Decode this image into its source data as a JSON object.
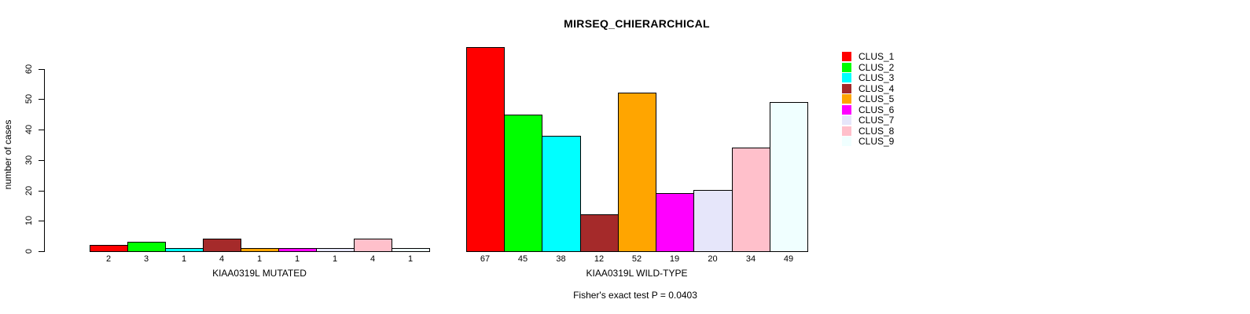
{
  "chart_data": {
    "type": "bar",
    "title": "MIRSEQ_CHIERARCHICAL",
    "ylabel": "number of cases",
    "annotation": "Fisher's exact test P = 0.0403",
    "yticks": [
      0,
      10,
      20,
      30,
      40,
      50,
      60
    ],
    "ylim": [
      0,
      67
    ],
    "grid": false,
    "bar_gap": 0,
    "legend_position": "top-right",
    "categories": [
      "CLUS_1",
      "CLUS_2",
      "CLUS_3",
      "CLUS_4",
      "CLUS_5",
      "CLUS_6",
      "CLUS_7",
      "CLUS_8",
      "CLUS_9"
    ],
    "series_colors": [
      "#FF0000",
      "#00FF00",
      "#00FFFF",
      "#A52A2A",
      "#FFA500",
      "#FF00FF",
      "#E6E6FA",
      "#FFC0CB",
      "#F0FFFF"
    ],
    "panels": [
      {
        "xlabel": "KIAA0319L MUTATED",
        "values": [
          2,
          3,
          1,
          4,
          1,
          1,
          1,
          4,
          1
        ]
      },
      {
        "xlabel": "KIAA0319L WILD-TYPE",
        "values": [
          67,
          45,
          38,
          12,
          52,
          19,
          20,
          34,
          49
        ]
      }
    ]
  }
}
